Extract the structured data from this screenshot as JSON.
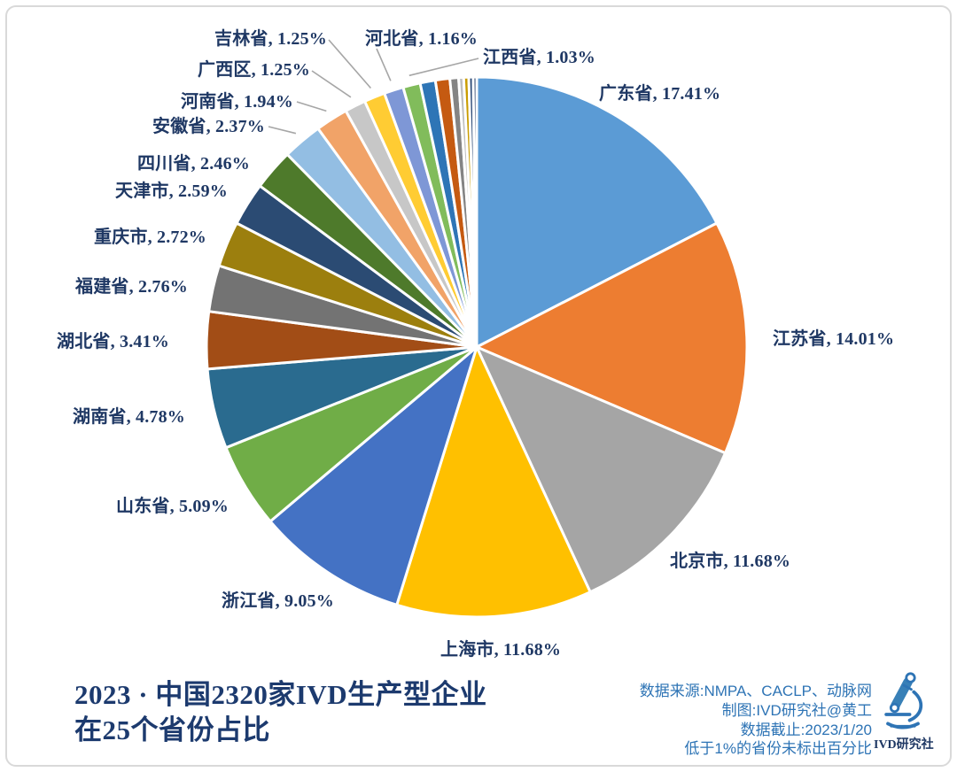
{
  "theme": {
    "label_color": "#1F3864",
    "title_color": "#1C3A6E",
    "source_color": "#2E74B5",
    "leader_color": "#A6A6A6",
    "border_color": "#D9D9D9",
    "background": "#FFFFFF"
  },
  "chart_data": {
    "type": "pie",
    "title": "2023 · 中国2320家IVD生产型企业在25个省份占比",
    "title_lines": [
      "2023 · 中国2320家IVD生产型企业",
      "在25个省份占比"
    ],
    "total_companies": "2320",
    "province_count": "25",
    "note": "低于1%的省份未标出百分比",
    "start_angle_deg": 0,
    "direction": "clockwise",
    "series": [
      {
        "name": "广东省",
        "value": 17.41,
        "color": "#5B9BD5",
        "label": "广东省, 17.41%"
      },
      {
        "name": "江苏省",
        "value": 14.01,
        "color": "#ED7D31",
        "label": "江苏省, 14.01%"
      },
      {
        "name": "北京市",
        "value": 11.68,
        "color": "#A5A5A5",
        "label": "北京市, 11.68%"
      },
      {
        "name": "上海市",
        "value": 11.68,
        "color": "#FFC000",
        "label": "上海市, 11.68%"
      },
      {
        "name": "浙江省",
        "value": 9.05,
        "color": "#4472C4",
        "label": "浙江省, 9.05%"
      },
      {
        "name": "山东省",
        "value": 5.09,
        "color": "#70AD47",
        "label": "山东省, 5.09%"
      },
      {
        "name": "湖南省",
        "value": 4.78,
        "color": "#2A6B8F",
        "label": "湖南省, 4.78%"
      },
      {
        "name": "湖北省",
        "value": 3.41,
        "color": "#A24D16",
        "label": "湖北省, 3.41%"
      },
      {
        "name": "福建省",
        "value": 2.76,
        "color": "#737373",
        "label": "福建省, 2.76%"
      },
      {
        "name": "重庆市",
        "value": 2.72,
        "color": "#9C7F0E",
        "label": "重庆市, 2.72%"
      },
      {
        "name": "天津市",
        "value": 2.59,
        "color": "#2B4B73",
        "label": "天津市, 2.59%"
      },
      {
        "name": "四川省",
        "value": 2.46,
        "color": "#4E7A2B",
        "label": "四川省, 2.46%"
      },
      {
        "name": "安徽省",
        "value": 2.37,
        "color": "#93BEE3",
        "label": "安徽省, 2.37%"
      },
      {
        "name": "河南省",
        "value": 1.94,
        "color": "#F1A368",
        "label": "河南省, 1.94%"
      },
      {
        "name": "广西区",
        "value": 1.25,
        "color": "#C7C7C7",
        "label": "广西区, 1.25%"
      },
      {
        "name": "吉林省",
        "value": 1.25,
        "color": "#FFCC33",
        "label": "吉林省, 1.25%"
      },
      {
        "name": "河北省",
        "value": 1.16,
        "color": "#7E97D6",
        "label": "河北省, 1.16%"
      },
      {
        "name": "江西省",
        "value": 1.03,
        "color": "#81BC5B",
        "label": "江西省, 1.03%"
      },
      {
        "name": "",
        "value": 0.91,
        "color": "#2E75B6",
        "label": null
      },
      {
        "name": "",
        "value": 0.86,
        "color": "#C55A11",
        "label": null
      },
      {
        "name": "",
        "value": 0.52,
        "color": "#848484",
        "label": null
      },
      {
        "name": "",
        "value": 0.3,
        "color": "#BFBFBF",
        "label": null
      },
      {
        "name": "",
        "value": 0.3,
        "color": "#C99C00",
        "label": null
      },
      {
        "name": "",
        "value": 0.26,
        "color": "#2C4A77",
        "label": null
      },
      {
        "name": "",
        "value": 0.21,
        "color": "#1F3864",
        "label": null
      }
    ]
  },
  "footer": {
    "lines": [
      "数据来源:NMPA、CACLP、动脉网",
      "制图:IVD研究社@黄工",
      "数据截止:2023/1/20",
      "低于1%的省份未标出百分比"
    ],
    "logo_text": "IVD研究社"
  }
}
